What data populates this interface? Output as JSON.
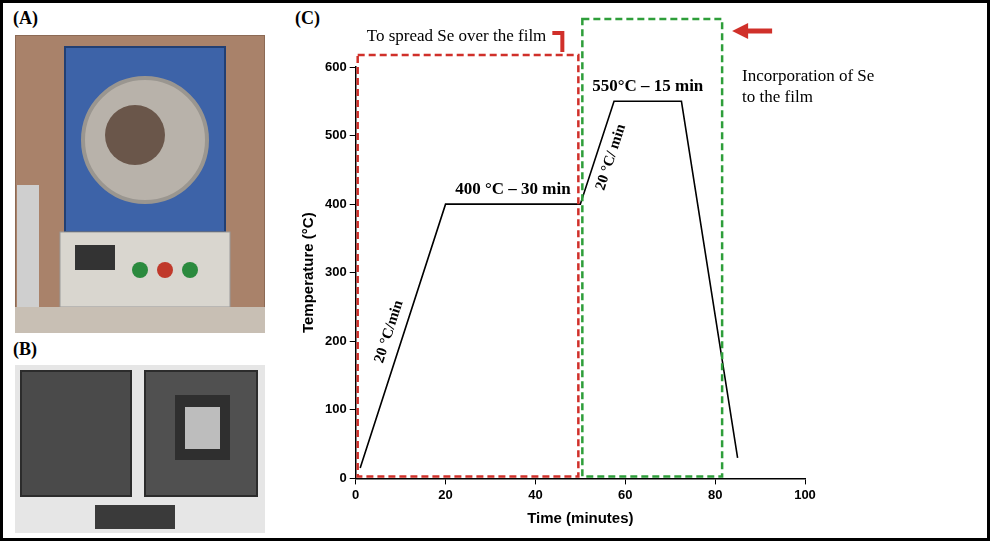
{
  "panel_labels": [
    "(A)",
    "(B)",
    "(C)"
  ],
  "chart_data": {
    "type": "line",
    "x_label": "Time (minutes)",
    "y_label": "Temperature (°C)",
    "x": [
      1,
      20,
      50,
      57.5,
      72.5,
      85
    ],
    "values": [
      15,
      400,
      400,
      550,
      550,
      30
    ],
    "color": "#000000",
    "xlim": [
      0,
      100
    ],
    "xticks": [
      0,
      20,
      40,
      60,
      80,
      100
    ],
    "ylim": [
      0,
      600
    ],
    "yticks": [
      0,
      100,
      200,
      300,
      400,
      500,
      600
    ],
    "grid": false,
    "segment_labels": [
      "20 °C/min",
      "400 °C – 30 min",
      "20 °C/ min",
      "550°C – 15 min",
      null
    ],
    "stages": [
      {
        "label": "To spread Se over the film",
        "xrange": [
          0,
          50
        ],
        "color": "#d0302a"
      },
      {
        "label": "Incorporation of Se to the film",
        "xrange": [
          50,
          82
        ],
        "color": "#2e9e3a"
      }
    ]
  }
}
